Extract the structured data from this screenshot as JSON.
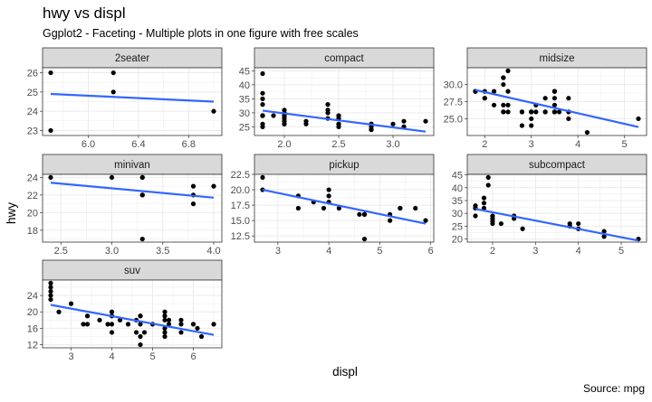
{
  "title": "hwy vs displ",
  "subtitle": "Ggplot2 - Faceting - Multiple plots in one figure with free scales",
  "caption": "Source: mpg",
  "colors": {
    "point": "#000000",
    "fit_line": "#3366ff",
    "strip_bg": "#d9d9d9",
    "grid": "#ebebeb",
    "panel_border": "#333333"
  },
  "chart_data": {
    "type": "scatter",
    "xlabel": "displ",
    "ylabel": "hwy",
    "scales": "free",
    "grid": true,
    "smooth": "linear",
    "facets": [
      {
        "name": "2seater",
        "xlim": [
          5.7,
          7.0
        ],
        "ylim": [
          22.9,
          26.1
        ],
        "xticks": [
          6.0,
          6.4,
          6.8
        ],
        "xtick_labels": [
          "6.0",
          "6.4",
          "6.8"
        ],
        "yticks": [
          23,
          24,
          25,
          26
        ],
        "ytick_labels": [
          "23",
          "24",
          "25",
          "26"
        ],
        "points": [
          [
            5.7,
            26
          ],
          [
            5.7,
            23
          ],
          [
            6.2,
            26
          ],
          [
            6.2,
            25
          ],
          [
            7.0,
            24
          ]
        ],
        "fit": [
          [
            5.7,
            24.9
          ],
          [
            7.0,
            24.5
          ]
        ]
      },
      {
        "name": "compact",
        "xlim": [
          1.8,
          3.3
        ],
        "ylim": [
          23,
          45
        ],
        "xticks": [
          2.0,
          2.5,
          3.0
        ],
        "xtick_labels": [
          "2.0",
          "2.5",
          "3.0"
        ],
        "yticks": [
          25,
          30,
          35,
          40,
          45
        ],
        "ytick_labels": [
          "25",
          "30",
          "35",
          "40",
          "45"
        ],
        "points": [
          [
            1.8,
            29
          ],
          [
            1.8,
            29
          ],
          [
            2.0,
            31
          ],
          [
            2.0,
            30
          ],
          [
            2.8,
            26
          ],
          [
            2.8,
            26
          ],
          [
            3.1,
            27
          ],
          [
            1.8,
            26
          ],
          [
            1.8,
            25
          ],
          [
            2.0,
            28
          ],
          [
            2.0,
            29
          ],
          [
            2.8,
            26
          ],
          [
            2.8,
            25
          ],
          [
            3.1,
            25
          ],
          [
            3.1,
            25
          ],
          [
            2.2,
            26
          ],
          [
            2.2,
            27
          ],
          [
            2.4,
            30
          ],
          [
            2.4,
            33
          ],
          [
            3.0,
            26
          ],
          [
            3.3,
            27
          ],
          [
            1.8,
            37
          ],
          [
            1.8,
            35
          ],
          [
            1.8,
            44
          ],
          [
            1.8,
            33
          ],
          [
            1.8,
            29
          ],
          [
            2.5,
            28
          ],
          [
            2.5,
            29
          ],
          [
            2.5,
            26
          ],
          [
            2.5,
            25
          ],
          [
            2.0,
            27
          ],
          [
            2.0,
            26
          ],
          [
            2.8,
            24
          ],
          [
            2.8,
            24
          ],
          [
            2.8,
            26
          ],
          [
            1.9,
            29
          ],
          [
            2.0,
            29
          ],
          [
            2.0,
            28
          ],
          [
            2.5,
            29
          ],
          [
            2.5,
            26
          ],
          [
            2.8,
            24
          ],
          [
            2.8,
            26
          ],
          [
            2.0,
            26
          ],
          [
            2.0,
            29
          ],
          [
            2.4,
            28
          ],
          [
            2.4,
            31
          ],
          [
            1.8,
            29
          ]
        ],
        "fit": [
          [
            1.8,
            30.8
          ],
          [
            3.3,
            23.3
          ]
        ]
      },
      {
        "name": "midsize",
        "xlim": [
          1.8,
          5.3
        ],
        "ylim": [
          23,
          32
        ],
        "xticks": [
          2,
          3,
          4,
          5
        ],
        "xtick_labels": [
          "2",
          "3",
          "4",
          "5"
        ],
        "yticks": [
          25.0,
          27.5,
          30.0
        ],
        "ytick_labels": [
          "25.0",
          "27.5",
          "30.0"
        ],
        "points": [
          [
            1.8,
            29
          ],
          [
            1.8,
            29
          ],
          [
            2.0,
            28
          ],
          [
            2.0,
            29
          ],
          [
            2.8,
            26
          ],
          [
            2.8,
            26
          ],
          [
            3.1,
            27
          ],
          [
            4.2,
            23
          ],
          [
            2.4,
            27
          ],
          [
            2.4,
            30
          ],
          [
            3.1,
            26
          ],
          [
            3.5,
            29
          ],
          [
            3.6,
            26
          ],
          [
            2.4,
            31
          ],
          [
            2.4,
            31
          ],
          [
            2.5,
            32
          ],
          [
            2.5,
            27
          ],
          [
            3.3,
            28
          ],
          [
            3.5,
            26
          ],
          [
            3.5,
            29
          ],
          [
            3.0,
            26
          ],
          [
            3.0,
            26
          ],
          [
            3.5,
            26
          ],
          [
            2.5,
            29
          ],
          [
            2.5,
            26
          ],
          [
            3.3,
            26
          ],
          [
            3.0,
            25
          ],
          [
            3.0,
            24
          ],
          [
            3.3,
            26
          ],
          [
            3.5,
            26
          ],
          [
            3.5,
            27
          ],
          [
            3.8,
            26
          ],
          [
            3.8,
            25
          ],
          [
            3.8,
            28
          ],
          [
            2.2,
            27
          ],
          [
            2.2,
            29
          ],
          [
            2.4,
            26
          ],
          [
            2.4,
            26
          ],
          [
            5.3,
            25
          ],
          [
            3.5,
            28
          ],
          [
            3.0,
            26
          ],
          [
            3.5,
            29
          ],
          [
            2.8,
            24
          ],
          [
            1.8,
            29
          ],
          [
            2.0,
            28
          ]
        ],
        "fit": [
          [
            1.8,
            29.2
          ],
          [
            5.3,
            23.8
          ]
        ]
      },
      {
        "name": "minivan",
        "xlim": [
          2.4,
          4.0
        ],
        "ylim": [
          17,
          24
        ],
        "xticks": [
          2.5,
          3.0,
          3.5,
          4.0
        ],
        "xtick_labels": [
          "2.5",
          "3.0",
          "3.5",
          "4.0"
        ],
        "yticks": [
          18,
          20,
          22,
          24
        ],
        "ytick_labels": [
          "18",
          "20",
          "22",
          "24"
        ],
        "points": [
          [
            2.4,
            24
          ],
          [
            3.0,
            24
          ],
          [
            3.3,
            22
          ],
          [
            3.3,
            22
          ],
          [
            3.3,
            24
          ],
          [
            3.3,
            24
          ],
          [
            3.3,
            17
          ],
          [
            3.8,
            22
          ],
          [
            3.8,
            21
          ],
          [
            3.8,
            23
          ],
          [
            4.0,
            23
          ]
        ],
        "fit": [
          [
            2.4,
            23.4
          ],
          [
            4.0,
            21.7
          ]
        ]
      },
      {
        "name": "pickup",
        "xlim": [
          2.7,
          5.9
        ],
        "ylim": [
          12,
          22
        ],
        "xticks": [
          3,
          4,
          5,
          6
        ],
        "xtick_labels": [
          "3",
          "4",
          "5",
          "6"
        ],
        "yticks": [
          12.5,
          15.0,
          17.5,
          20.0,
          22.5
        ],
        "ytick_labels": [
          "12.5",
          "15.0",
          "17.5",
          "20.0",
          "22.5"
        ],
        "points": [
          [
            2.7,
            20
          ],
          [
            2.7,
            22
          ],
          [
            3.4,
            19
          ],
          [
            3.4,
            17
          ],
          [
            3.7,
            18
          ],
          [
            4.0,
            20
          ],
          [
            3.9,
            17
          ],
          [
            4.7,
            16
          ],
          [
            4.7,
            12
          ],
          [
            4.7,
            16
          ],
          [
            5.2,
            15
          ],
          [
            5.7,
            17
          ],
          [
            4.0,
            19
          ],
          [
            4.2,
            17
          ],
          [
            4.6,
            16
          ],
          [
            4.7,
            16
          ],
          [
            5.4,
            17
          ],
          [
            5.9,
            15
          ],
          [
            4.7,
            16
          ],
          [
            4.0,
            18
          ],
          [
            5.2,
            16
          ],
          [
            5.4,
            17
          ]
        ],
        "fit": [
          [
            2.7,
            20.0
          ],
          [
            5.9,
            14.5
          ]
        ]
      },
      {
        "name": "subcompact",
        "xlim": [
          1.6,
          5.4
        ],
        "ylim": [
          20,
          44
        ],
        "xticks": [
          2,
          3,
          4,
          5
        ],
        "xtick_labels": [
          "2",
          "3",
          "4",
          "5"
        ],
        "yticks": [
          20,
          25,
          30,
          35,
          40,
          45
        ],
        "ytick_labels": [
          "20",
          "25",
          "30",
          "35",
          "40",
          "45"
        ],
        "points": [
          [
            1.6,
            33
          ],
          [
            1.6,
            32
          ],
          [
            1.6,
            32
          ],
          [
            1.6,
            29
          ],
          [
            1.8,
            36
          ],
          [
            1.8,
            34
          ],
          [
            1.8,
            32
          ],
          [
            1.9,
            44
          ],
          [
            1.9,
            41
          ],
          [
            2.0,
            29
          ],
          [
            2.0,
            26
          ],
          [
            2.0,
            28
          ],
          [
            2.0,
            27
          ],
          [
            2.2,
            26
          ],
          [
            2.5,
            29
          ],
          [
            2.5,
            28
          ],
          [
            2.7,
            24
          ],
          [
            3.8,
            26
          ],
          [
            3.8,
            25
          ],
          [
            4.0,
            26
          ],
          [
            4.0,
            24
          ],
          [
            4.6,
            23
          ],
          [
            4.6,
            21
          ],
          [
            5.4,
            20
          ]
        ],
        "fit": [
          [
            1.6,
            31.7
          ],
          [
            5.4,
            19.4
          ]
        ]
      },
      {
        "name": "suv",
        "xlim": [
          2.5,
          6.5
        ],
        "ylim": [
          12,
          27
        ],
        "xticks": [
          3,
          4,
          5,
          6
        ],
        "xtick_labels": [
          "3",
          "4",
          "5",
          "6"
        ],
        "yticks": [
          12,
          16,
          20,
          24
        ],
        "ytick_labels": [
          "12",
          "16",
          "20",
          "24"
        ],
        "points": [
          [
            2.5,
            27
          ],
          [
            2.5,
            26
          ],
          [
            2.5,
            25
          ],
          [
            2.5,
            24
          ],
          [
            2.5,
            23
          ],
          [
            2.7,
            20
          ],
          [
            3.0,
            22
          ],
          [
            3.3,
            17
          ],
          [
            3.4,
            17
          ],
          [
            3.4,
            19
          ],
          [
            3.7,
            18
          ],
          [
            3.9,
            17
          ],
          [
            4.0,
            19
          ],
          [
            4.0,
            20
          ],
          [
            4.0,
            15
          ],
          [
            4.0,
            17
          ],
          [
            4.2,
            18
          ],
          [
            4.4,
            17
          ],
          [
            4.6,
            15
          ],
          [
            4.6,
            18
          ],
          [
            4.7,
            19
          ],
          [
            4.7,
            17
          ],
          [
            4.7,
            12
          ],
          [
            4.7,
            14
          ],
          [
            4.7,
            19
          ],
          [
            4.8,
            15
          ],
          [
            5.0,
            17
          ],
          [
            5.3,
            20
          ],
          [
            5.3,
            19
          ],
          [
            5.3,
            16
          ],
          [
            5.3,
            15
          ],
          [
            5.3,
            14
          ],
          [
            5.3,
            18
          ],
          [
            5.4,
            17
          ],
          [
            5.4,
            18
          ],
          [
            5.7,
            17
          ],
          [
            5.7,
            18
          ],
          [
            5.7,
            15
          ],
          [
            6.0,
            17
          ],
          [
            6.1,
            16
          ],
          [
            6.2,
            14
          ],
          [
            6.5,
            17
          ]
        ],
        "fit": [
          [
            2.5,
            21.7
          ],
          [
            6.5,
            14.4
          ]
        ]
      }
    ]
  }
}
